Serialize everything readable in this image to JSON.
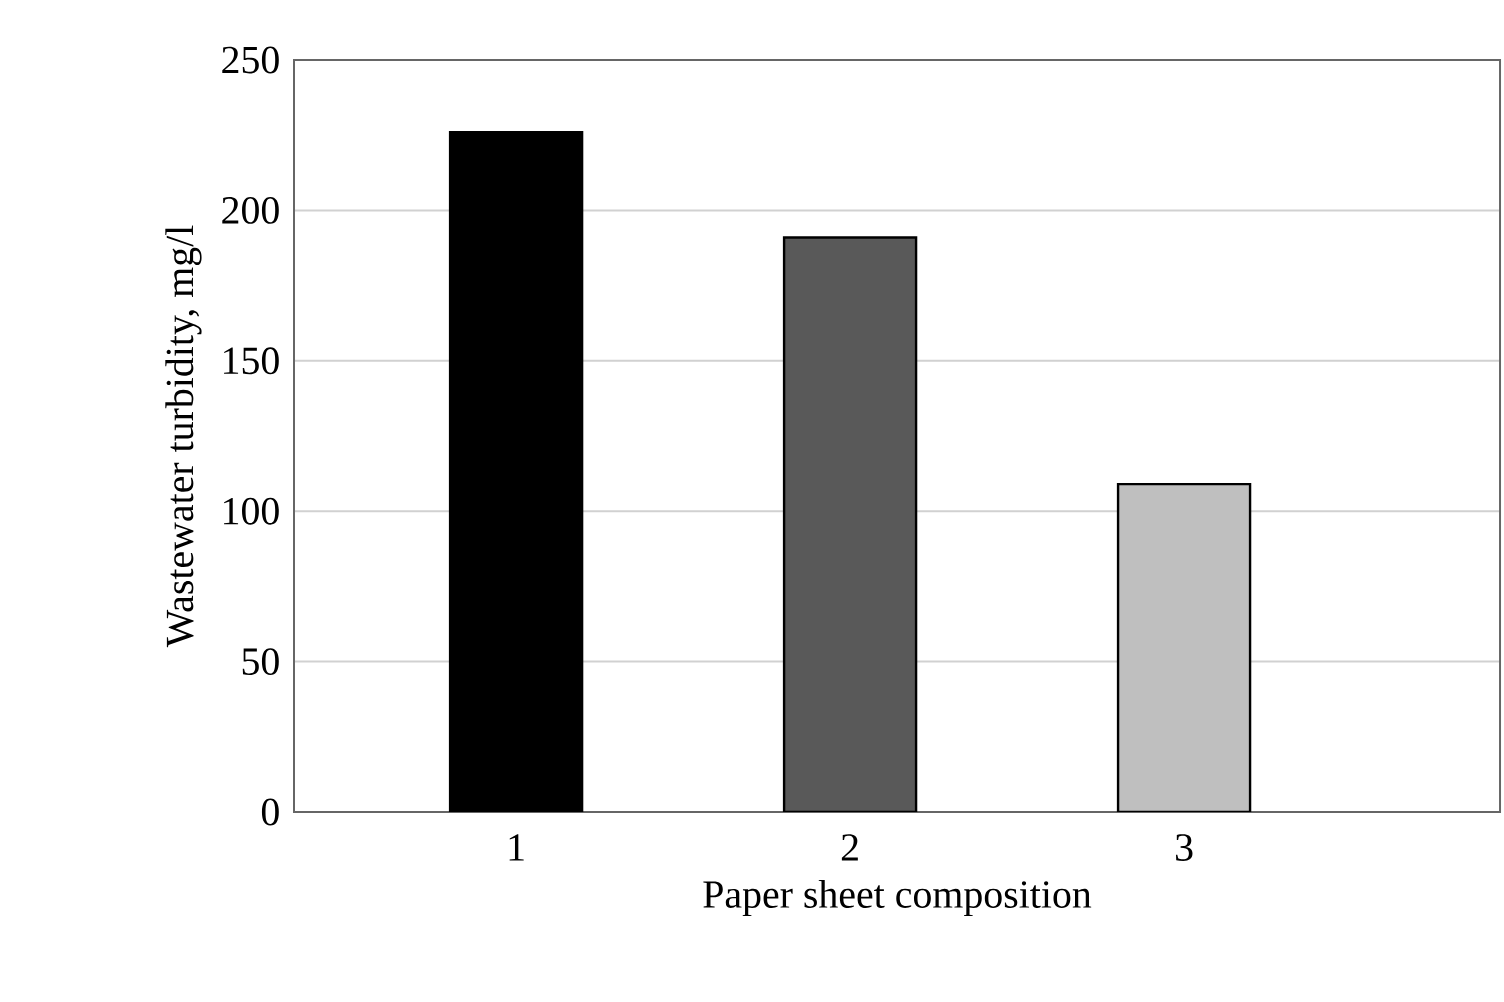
{
  "chart_data": {
    "type": "bar",
    "xlabel": "Paper sheet composition",
    "ylabel": "Wastewater turbidity, mg/l",
    "categories": [
      "1",
      "2",
      "3"
    ],
    "values": [
      226,
      191,
      109
    ],
    "colors": [
      "#000000",
      "#595959",
      "#bfbfbf"
    ],
    "ylim": [
      0,
      250
    ],
    "yticks": [
      0,
      50,
      100,
      150,
      200,
      250
    ],
    "grid": "y"
  }
}
